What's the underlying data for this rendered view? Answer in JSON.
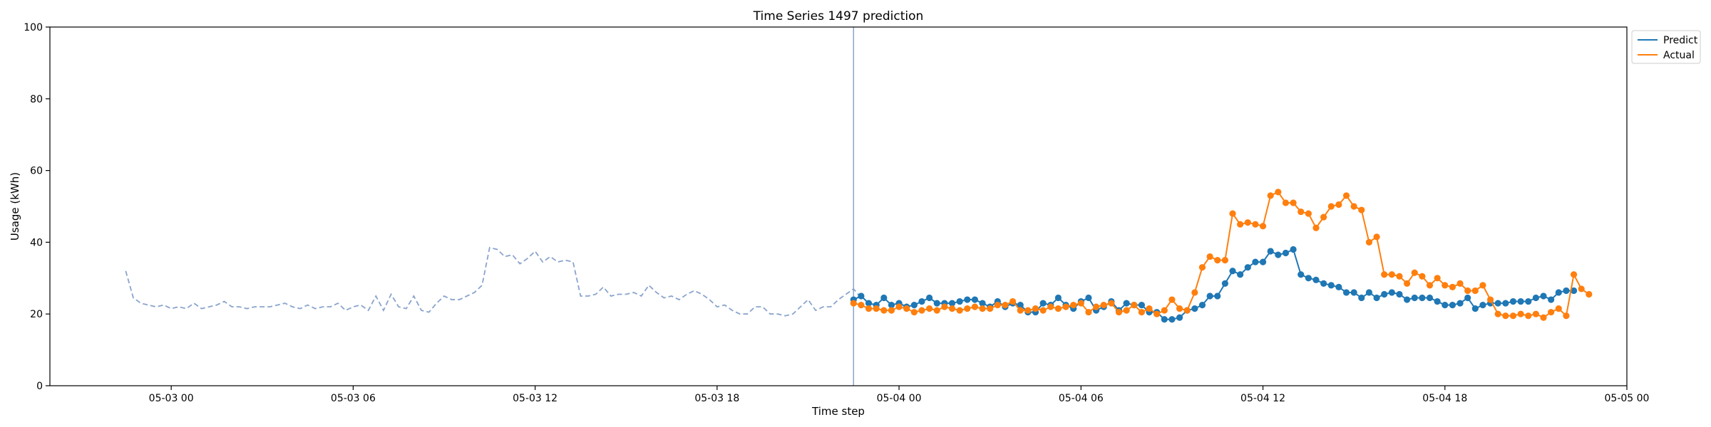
{
  "chart_data": {
    "type": "line",
    "title": "Time Series 1497 prediction",
    "xlabel": "Time step",
    "ylabel": "Usage (kWh)",
    "x_start": "2024-05-02 20:00",
    "x_end": "2024-05-05 00:00",
    "ylim": [
      0,
      100
    ],
    "yticks": [
      0,
      20,
      40,
      60,
      80,
      100
    ],
    "xticks": [
      "05-03 00",
      "05-03 06",
      "05-03 12",
      "05-03 18",
      "05-04 00",
      "05-04 06",
      "05-04 12",
      "05-04 18",
      "05-05 00"
    ],
    "xtick_times": [
      "2024-05-03 00:00",
      "2024-05-03 06:00",
      "2024-05-03 12:00",
      "2024-05-03 18:00",
      "2024-05-04 00:00",
      "2024-05-04 06:00",
      "2024-05-04 12:00",
      "2024-05-04 18:00",
      "2024-05-05 00:00"
    ],
    "grid": false,
    "legend_position": "upper right, outside plot",
    "forecast_start": "2024-05-03 22:30",
    "interval_minutes": 15,
    "history_start": "2024-05-02 22:30",
    "history": [
      32.0,
      24.5,
      23.0,
      22.5,
      22.0,
      22.5,
      21.5,
      22.0,
      21.5,
      23.0,
      21.5,
      22.0,
      22.5,
      23.5,
      22.0,
      22.0,
      21.5,
      22.0,
      22.0,
      22.0,
      22.5,
      23.0,
      22.0,
      21.5,
      22.5,
      21.5,
      22.0,
      22.0,
      23.0,
      21.0,
      22.0,
      22.5,
      21.0,
      25.0,
      21.0,
      25.5,
      22.0,
      21.5,
      25.0,
      21.0,
      20.5,
      23.0,
      25.0,
      24.0,
      24.0,
      25.0,
      26.0,
      28.0,
      38.5,
      38.0,
      36.0,
      36.5,
      34.0,
      35.5,
      37.5,
      34.5,
      36.0,
      34.5,
      35.0,
      34.5,
      25.0,
      25.0,
      25.5,
      27.5,
      25.0,
      25.5,
      25.5,
      26.0,
      25.0,
      28.0,
      26.0,
      24.5,
      25.0,
      24.0,
      25.5,
      26.5,
      25.5,
      24.0,
      22.0,
      22.5,
      21.0,
      20.0,
      20.0,
      22.0,
      22.0,
      20.0,
      20.0,
      19.5,
      20.0,
      22.0,
      24.0,
      21.0,
      22.0,
      22.0,
      24.0,
      25.5,
      27.0,
      24.5
    ],
    "series": [
      {
        "name": "Predict",
        "color": "#1f77b4",
        "values": [
          24.0,
          25.0,
          23.0,
          22.5,
          24.5,
          22.5,
          23.0,
          22.0,
          22.5,
          23.5,
          24.5,
          23.0,
          23.0,
          23.0,
          23.5,
          24.0,
          24.0,
          23.0,
          22.0,
          23.5,
          22.0,
          23.0,
          22.5,
          20.5,
          20.5,
          23.0,
          22.5,
          24.5,
          22.5,
          21.5,
          23.5,
          24.5,
          21.0,
          22.0,
          23.5,
          21.0,
          23.0,
          22.5,
          22.5,
          20.5,
          20.5,
          18.5,
          18.5,
          19.0,
          21.0,
          21.5,
          22.5,
          25.0,
          25.0,
          28.5,
          32.0,
          31.0,
          33.0,
          34.5,
          34.5,
          37.5,
          36.5,
          37.0,
          38.0,
          31.0,
          30.0,
          29.5,
          28.5,
          28.0,
          27.5,
          26.0,
          26.0,
          24.5,
          26.0,
          24.5,
          25.5,
          26.0,
          25.5,
          24.0,
          24.5,
          24.5,
          24.5,
          23.5,
          22.5,
          22.5,
          23.0,
          24.5,
          21.5,
          22.5,
          23.0,
          23.0,
          23.0,
          23.5,
          23.5,
          23.5,
          24.5,
          25.0,
          24.0,
          26.0,
          26.5,
          26.5
        ]
      },
      {
        "name": "Actual",
        "color": "#ff7f0e",
        "values": [
          23.0,
          22.5,
          21.5,
          21.5,
          21.0,
          21.0,
          22.0,
          21.5,
          20.5,
          21.0,
          21.5,
          21.0,
          22.0,
          21.5,
          21.0,
          21.5,
          22.0,
          21.5,
          21.5,
          22.5,
          22.5,
          23.5,
          21.0,
          21.0,
          21.5,
          21.0,
          22.0,
          21.5,
          22.0,
          22.5,
          23.0,
          20.5,
          22.0,
          22.5,
          23.0,
          20.5,
          21.0,
          22.5,
          20.5,
          21.5,
          20.0,
          21.0,
          24.0,
          21.5,
          21.0,
          26.0,
          33.0,
          36.0,
          35.0,
          35.0,
          48.0,
          45.0,
          45.5,
          45.0,
          44.5,
          53.0,
          54.0,
          51.0,
          51.0,
          48.5,
          48.0,
          44.0,
          47.0,
          50.0,
          50.5,
          53.0,
          50.0,
          49.0,
          40.0,
          41.5,
          31.0,
          31.0,
          30.5,
          28.5,
          31.5,
          30.5,
          28.0,
          30.0,
          28.0,
          27.5,
          28.5,
          26.5,
          26.5,
          28.0,
          24.0,
          20.0,
          19.5,
          19.5,
          20.0,
          19.5,
          20.0,
          19.0,
          20.5,
          21.5,
          19.5,
          31.0,
          27.0,
          25.5
        ]
      }
    ]
  }
}
